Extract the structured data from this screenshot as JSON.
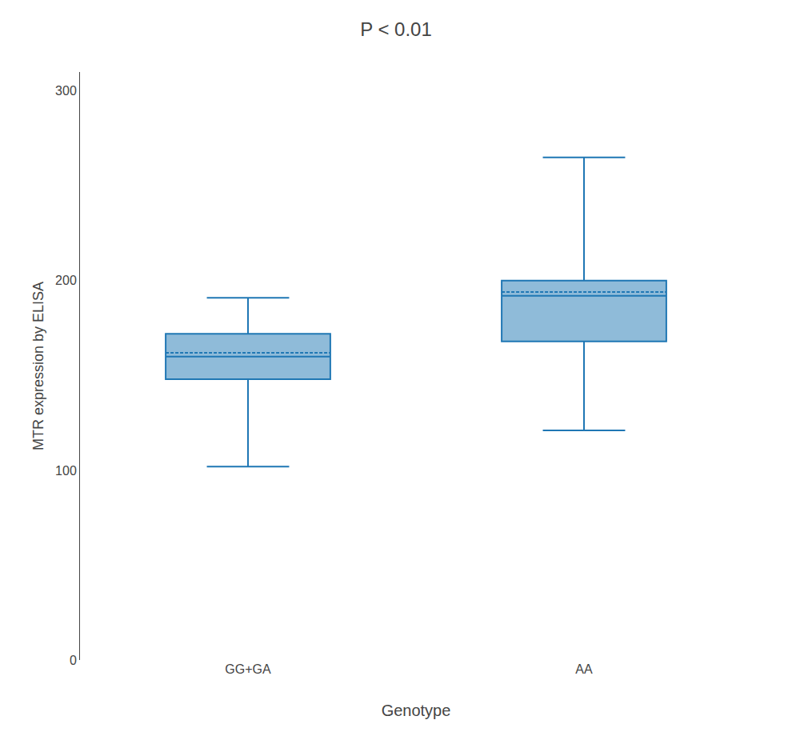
{
  "chart_data": {
    "type": "box",
    "title": "P < 0.01",
    "xlabel": "Genotype",
    "ylabel": "MTR expression by ELISA",
    "categories": [
      "GG+GA",
      "AA"
    ],
    "boxes": [
      {
        "whisker_low": 102,
        "q1": 148,
        "median": 160,
        "mean": 162,
        "q3": 172,
        "whisker_high": 191
      },
      {
        "whisker_low": 121,
        "q1": 168,
        "median": 192,
        "mean": 194,
        "q3": 200,
        "whisker_high": 265
      }
    ],
    "ylim": [
      0,
      310
    ],
    "yticks": [
      0,
      100,
      200,
      300
    ],
    "grid": false
  }
}
